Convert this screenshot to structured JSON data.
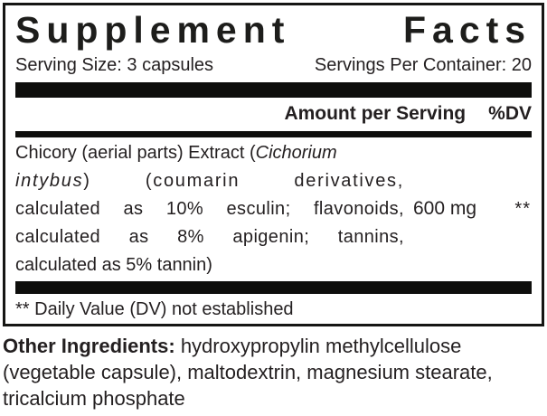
{
  "panel": {
    "title": "Supplement Facts",
    "serving_size": "Serving Size: 3 capsules",
    "servings_per_container": "Servings Per Container: 20",
    "columns": {
      "amount_header": "Amount per Serving",
      "dv_header": "%DV"
    },
    "ingredient": {
      "amount": "600 mg",
      "dv": "**",
      "lines": [
        {
          "pre": "Chicory (aerial parts) Extract (",
          "italic": "Cichorium",
          "post": ""
        },
        {
          "pre": "",
          "italic": "intybus",
          "post": ") (coumarin derivatives,"
        },
        {
          "pre": "calculated as 10% esculin; flavonoids,",
          "italic": "",
          "post": ""
        },
        {
          "pre": "calculated as 8% apigenin; tannins,",
          "italic": "",
          "post": ""
        },
        {
          "pre": "calculated as 5% tannin)",
          "italic": "",
          "post": ""
        }
      ]
    },
    "footnote": "** Daily Value (DV) not established"
  },
  "other_ingredients": {
    "label": "Other Ingredients:",
    "text": "hydroxypropylin methylcellulose (vegetable capsule), maltodextrin, magnesium stearate, tricalcium phosphate"
  },
  "colors": {
    "ink": "#231f20",
    "bar": "#0e0e0c",
    "background": "#ffffff"
  }
}
